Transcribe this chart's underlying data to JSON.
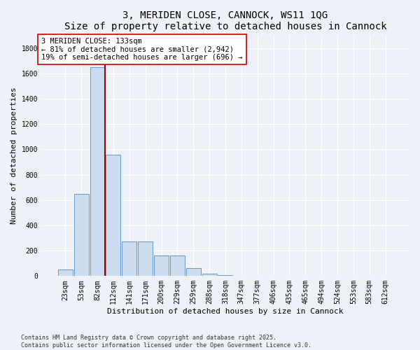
{
  "title": "3, MERIDEN CLOSE, CANNOCK, WS11 1QG",
  "subtitle": "Size of property relative to detached houses in Cannock",
  "xlabel": "Distribution of detached houses by size in Cannock",
  "ylabel": "Number of detached properties",
  "categories": [
    "23sqm",
    "53sqm",
    "82sqm",
    "112sqm",
    "141sqm",
    "171sqm",
    "200sqm",
    "229sqm",
    "259sqm",
    "288sqm",
    "318sqm",
    "347sqm",
    "377sqm",
    "406sqm",
    "435sqm",
    "465sqm",
    "494sqm",
    "524sqm",
    "553sqm",
    "583sqm",
    "612sqm"
  ],
  "values": [
    50,
    650,
    1650,
    960,
    270,
    270,
    160,
    160,
    60,
    20,
    5,
    2,
    2,
    1,
    0,
    0,
    0,
    0,
    0,
    0,
    0
  ],
  "bar_color": "#ccddf0",
  "bar_edge_color": "#6699cc",
  "vline_x_index": 2,
  "vline_color": "#990000",
  "annotation_text": "3 MERIDEN CLOSE: 133sqm\n← 81% of detached houses are smaller (2,942)\n19% of semi-detached houses are larger (696) →",
  "annotation_box_color": "#ffffff",
  "annotation_box_edge": "#cc0000",
  "ylim": [
    0,
    1900
  ],
  "yticks": [
    0,
    200,
    400,
    600,
    800,
    1000,
    1200,
    1400,
    1600,
    1800
  ],
  "title_fontsize": 10,
  "axis_fontsize": 8,
  "tick_fontsize": 7,
  "annotation_fontsize": 7.5,
  "footer_text": "Contains HM Land Registry data © Crown copyright and database right 2025.\nContains public sector information licensed under the Open Government Licence v3.0.",
  "bg_color": "#eef2f8",
  "plot_bg_color": "#eef2f8",
  "grid_color": "#ffffff"
}
